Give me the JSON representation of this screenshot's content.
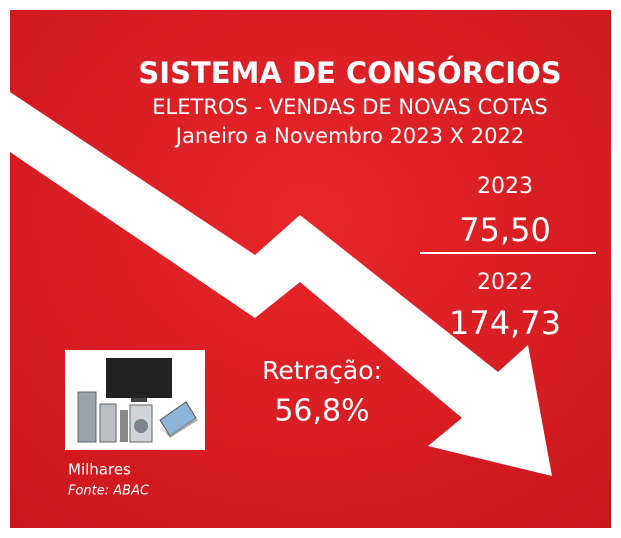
{
  "header": {
    "title": "SISTEMA DE CONSÓRCIOS",
    "subtitle": "ELETROS - VENDAS DE NOVAS COTAS",
    "period": "Janeiro a Novembro 2023 X 2022"
  },
  "figures": [
    {
      "year": "2023",
      "value": "75,50"
    },
    {
      "year": "2022",
      "value": "174,73"
    }
  ],
  "retraction": {
    "label": "Retração:",
    "value": "56,8%"
  },
  "footer": {
    "unit": "Milhares",
    "source": "Fonte: ABAC"
  }
}
